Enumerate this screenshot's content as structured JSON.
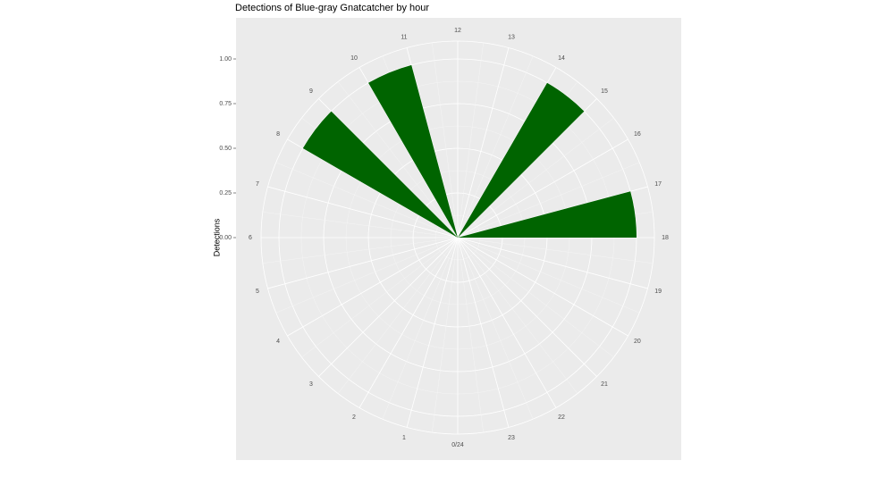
{
  "chart_data": {
    "type": "polar-bar",
    "title": "Detections of Blue-gray Gnatcatcher by hour",
    "y_label": "Detections",
    "x": [
      8,
      10,
      14,
      17
    ],
    "values": [
      1,
      1,
      1,
      1
    ],
    "color": "#006400",
    "xlim": [
      0,
      24
    ],
    "xticks": [
      {
        "value": 0,
        "label": "0/24"
      },
      1,
      2,
      3,
      4,
      5,
      6,
      7,
      8,
      9,
      10,
      11,
      12,
      13,
      14,
      15,
      16,
      17,
      18,
      19,
      20,
      21,
      22,
      23
    ],
    "ylim": [
      0,
      1.1
    ],
    "yticks": [
      {
        "value": 0,
        "label": "0.00"
      },
      {
        "value": 0.25,
        "label": "0.25"
      },
      {
        "value": 0.5,
        "label": "0.50"
      },
      {
        "value": 0.75,
        "label": "0.75"
      },
      {
        "value": 1,
        "label": "1.00"
      }
    ],
    "grid": true
  }
}
